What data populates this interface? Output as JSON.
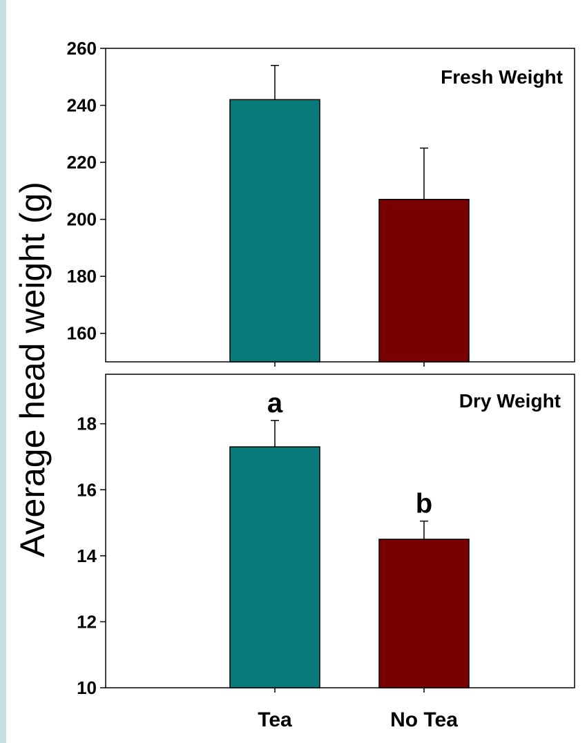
{
  "ylabel": "Average head weight (g)",
  "chart_data": [
    {
      "type": "bar",
      "title": "Fresh Weight",
      "categories": [
        "Tea",
        "No Tea"
      ],
      "values": [
        242,
        207
      ],
      "errors": [
        12,
        18
      ],
      "ylim": [
        150,
        260
      ],
      "yticks": [
        "160",
        "180",
        "200",
        "220",
        "240",
        "260"
      ],
      "ytick_values": [
        160,
        180,
        200,
        220,
        240,
        260
      ],
      "colors": [
        "#087a7a",
        "#7a0000"
      ],
      "significance": [
        "",
        ""
      ]
    },
    {
      "type": "bar",
      "title": "Dry Weight",
      "categories": [
        "Tea",
        "No Tea"
      ],
      "values": [
        17.3,
        14.5
      ],
      "errors": [
        0.8,
        0.55
      ],
      "ylim": [
        10,
        19.5
      ],
      "yticks": [
        "10",
        "12",
        "14",
        "16",
        "18"
      ],
      "ytick_values": [
        10,
        12,
        14,
        16,
        18
      ],
      "colors": [
        "#087a7a",
        "#7a0000"
      ],
      "significance": [
        "a",
        "b"
      ]
    }
  ],
  "categories_shown": [
    "Tea",
    "No Tea"
  ]
}
